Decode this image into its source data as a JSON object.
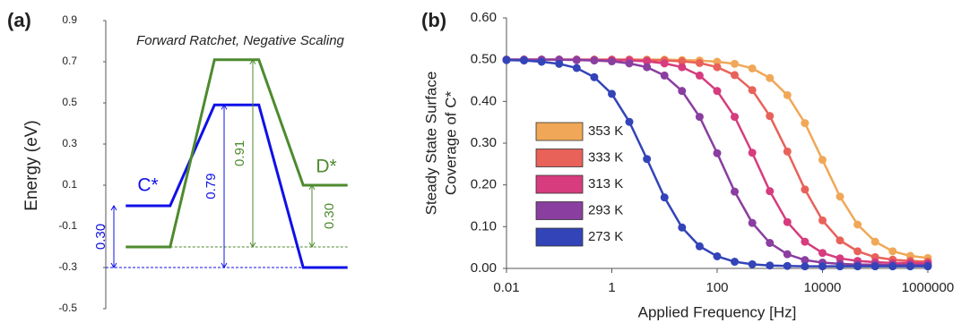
{
  "chart_data": [
    {
      "type": "line",
      "panel_label": "(a)",
      "title": "Forward Ratchet, Negative Scaling",
      "ylabel": "Energy (eV)",
      "x": [
        0,
        1,
        2,
        3,
        4,
        5
      ],
      "xlim": [
        -0.45,
        5.45
      ],
      "ylim": [
        -0.5,
        0.9
      ],
      "yticks": [
        -0.5,
        -0.3,
        -0.1,
        0.1,
        0.3,
        0.5,
        0.7,
        0.9
      ],
      "series": [
        {
          "name": "C*",
          "color": "#1010e8",
          "values": [
            0,
            0,
            0.49,
            0.49,
            -0.3,
            -0.3
          ]
        },
        {
          "name": "D*",
          "color": "#4e8a2e",
          "values": [
            -0.2,
            -0.2,
            0.71,
            0.71,
            0.1,
            0.1
          ]
        }
      ],
      "annotations": [
        "0.30",
        "0.79",
        "0.91",
        "0.30"
      ]
    },
    {
      "type": "line",
      "markers": true,
      "panel_label": "(b)",
      "ylabel": [
        "Steady State Surface",
        "Coverage of C*"
      ],
      "xlabel": "Applied Frequency [Hz]",
      "xscale": "log",
      "xlim": [
        0.01,
        1000000
      ],
      "xticks": [
        0.01,
        1,
        100,
        10000,
        1000000
      ],
      "ylim": [
        0,
        0.6
      ],
      "yticks": [
        {
          "value": 0,
          "label": "0.00"
        },
        {
          "value": 0.1,
          "label": "0.10"
        },
        {
          "value": 0.2,
          "label": "0.20"
        },
        {
          "value": 0.3,
          "label": "0.30"
        },
        {
          "value": 0.4,
          "label": "0.40"
        },
        {
          "value": 0.5,
          "label": "0.50"
        },
        {
          "value": 0.6,
          "label": "0.60"
        }
      ],
      "legend": "left",
      "x": [
        0.01,
        0.0215,
        0.0464,
        0.1,
        0.215,
        0.464,
        1,
        2.15,
        4.64,
        10,
        21.5,
        46.4,
        100,
        215,
        464,
        1000,
        2150,
        4640,
        10000,
        21500,
        46400,
        100000,
        215000,
        464000,
        1000000
      ],
      "series": [
        {
          "name": "353 K",
          "color": "#f0a858",
          "values": [
            0.5,
            0.5,
            0.5,
            0.5,
            0.5,
            0.5,
            0.5,
            0.5,
            0.5,
            0.5,
            0.499,
            0.498,
            0.495,
            0.49,
            0.479,
            0.456,
            0.415,
            0.348,
            0.26,
            0.172,
            0.105,
            0.064,
            0.041,
            0.03,
            0.025
          ]
        },
        {
          "name": "333 K",
          "color": "#e8625a",
          "values": [
            0.5,
            0.5,
            0.5,
            0.5,
            0.5,
            0.5,
            0.5,
            0.5,
            0.499,
            0.498,
            0.496,
            0.492,
            0.482,
            0.463,
            0.427,
            0.365,
            0.28,
            0.189,
            0.115,
            0.067,
            0.041,
            0.027,
            0.021,
            0.018,
            0.016
          ]
        },
        {
          "name": "313 K",
          "color": "#d63c7e",
          "values": [
            0.5,
            0.5,
            0.5,
            0.5,
            0.5,
            0.499,
            0.499,
            0.498,
            0.496,
            0.491,
            0.482,
            0.462,
            0.425,
            0.363,
            0.277,
            0.185,
            0.111,
            0.064,
            0.037,
            0.024,
            0.018,
            0.015,
            0.013,
            0.013,
            0.012
          ]
        },
        {
          "name": "293 K",
          "color": "#8a3ea0",
          "values": [
            0.5,
            0.5,
            0.5,
            0.5,
            0.499,
            0.498,
            0.496,
            0.491,
            0.482,
            0.462,
            0.425,
            0.363,
            0.276,
            0.184,
            0.109,
            0.061,
            0.034,
            0.02,
            0.014,
            0.011,
            0.009,
            0.009,
            0.008,
            0.008,
            0.008
          ]
        },
        {
          "name": "273 K",
          "color": "#3344b8",
          "values": [
            0.499,
            0.498,
            0.495,
            0.49,
            0.48,
            0.458,
            0.418,
            0.351,
            0.262,
            0.17,
            0.098,
            0.053,
            0.029,
            0.016,
            0.01,
            0.007,
            0.006,
            0.005,
            0.005,
            0.005,
            0.005,
            0.005,
            0.005,
            0.005,
            0.005
          ]
        }
      ]
    }
  ]
}
